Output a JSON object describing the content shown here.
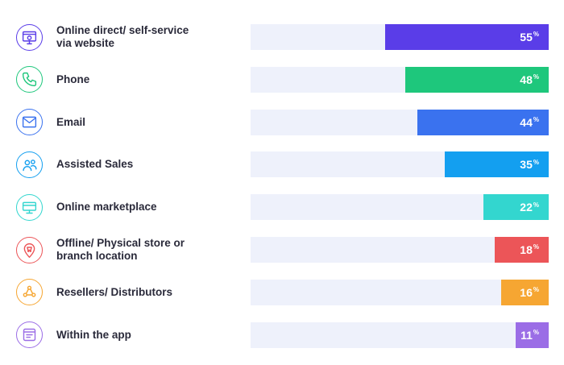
{
  "chart_data": {
    "type": "bar",
    "orientation": "horizontal",
    "xlim": [
      0,
      100
    ],
    "grid": false,
    "value_suffix": "%",
    "categories": [
      "Online direct/ self-service via website",
      "Phone",
      "Email",
      "Assisted Sales",
      "Online marketplace",
      "Offline/ Physical store or branch location",
      "Resellers/ Distributors",
      "Within the app"
    ],
    "label_lines": [
      [
        "Online direct/ self-service",
        "via website"
      ],
      [
        "Phone"
      ],
      [
        "Email"
      ],
      [
        "Assisted Sales"
      ],
      [
        "Online marketplace"
      ],
      [
        "Offline/ Physical store or",
        "branch location"
      ],
      [
        "Resellers/ Distributors"
      ],
      [
        "Within the app"
      ]
    ],
    "values": [
      55,
      48,
      44,
      35,
      22,
      18,
      16,
      11
    ],
    "value_labels": [
      "55",
      "48",
      "44",
      "35",
      "22",
      "18",
      "16",
      "11"
    ],
    "colors": [
      "#5a3de8",
      "#1ec77c",
      "#3a72ef",
      "#139ff0",
      "#33d6cf",
      "#ec5558",
      "#f6a632",
      "#9b6de6"
    ],
    "icons": [
      "website-icon",
      "phone-icon",
      "email-icon",
      "assisted-sales-icon",
      "marketplace-icon",
      "store-location-icon",
      "resellers-icon",
      "app-icon"
    ],
    "icon_colors": [
      "#5a3de8",
      "#1ec77c",
      "#3a72ef",
      "#139ff0",
      "#33d6cf",
      "#ec5558",
      "#f6a632",
      "#9b6de6"
    ]
  }
}
